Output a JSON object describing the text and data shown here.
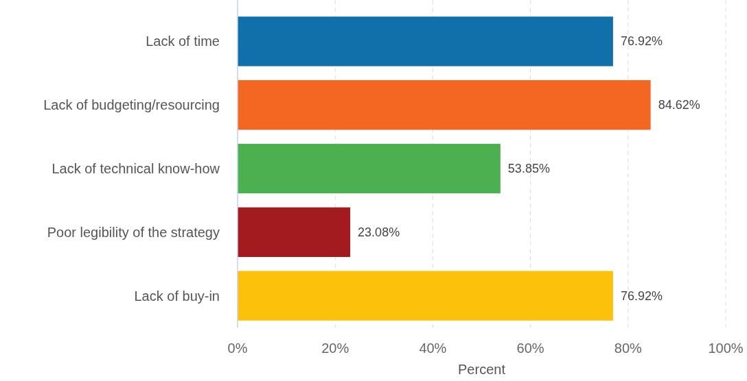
{
  "chart_data": {
    "type": "bar",
    "orientation": "horizontal",
    "xlabel": "Percent",
    "categories": [
      "Lack of time",
      "Lack of budgeting/resourcing",
      "Lack of technical know-how",
      "Poor legibility of the strategy",
      "Lack of buy-in"
    ],
    "values": [
      76.92,
      84.62,
      53.85,
      23.08,
      76.92
    ],
    "colors": [
      "#1170aa",
      "#f36722",
      "#4caf50",
      "#a31b1f",
      "#fcc10a"
    ],
    "value_labels": [
      "76.92%",
      "84.62%",
      "53.85%",
      "23.08%",
      "76.92%"
    ],
    "xlim": [
      0,
      100
    ],
    "xticks": [
      {
        "value": 0,
        "label": "0%"
      },
      {
        "value": 20,
        "label": "20%"
      },
      {
        "value": 40,
        "label": "40%"
      },
      {
        "value": 60,
        "label": "60%"
      },
      {
        "value": 80,
        "label": "80%"
      },
      {
        "value": 100,
        "label": "100%"
      }
    ],
    "grid": "x"
  }
}
